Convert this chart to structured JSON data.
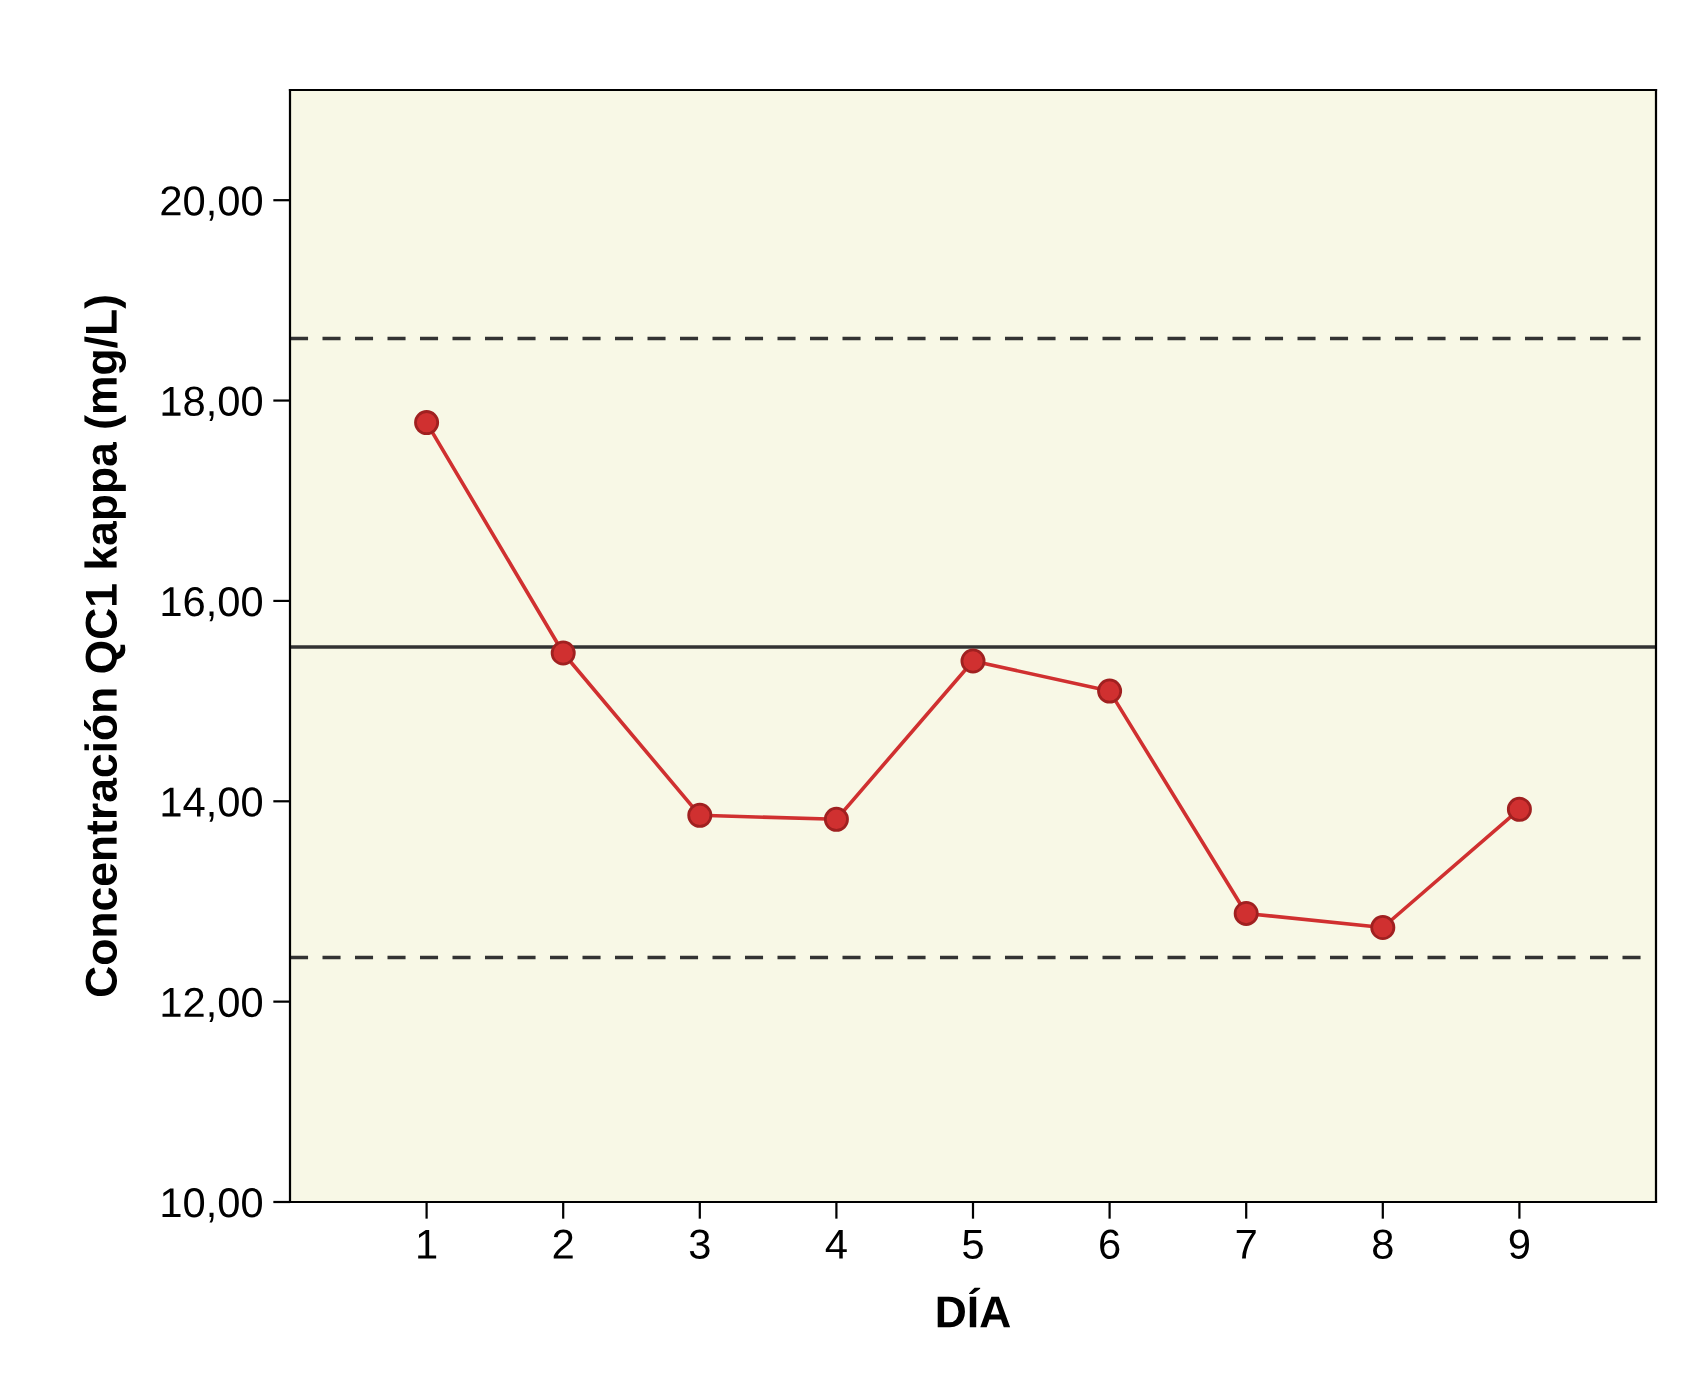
{
  "chart_data": {
    "type": "line",
    "xlabel": "DÍA",
    "ylabel": "Concentración QC1 kappa (mg/L)",
    "x": [
      1,
      2,
      3,
      4,
      5,
      6,
      7,
      8,
      9
    ],
    "series": [
      {
        "color": "#d03030",
        "values": [
          17.78,
          15.48,
          13.86,
          13.82,
          15.4,
          15.1,
          12.88,
          12.74,
          13.92
        ]
      }
    ],
    "marker": "circle",
    "line_style": "solid",
    "grid": false,
    "legend": false,
    "xlim": [
      0,
      10
    ],
    "xticks": [
      1,
      2,
      3,
      4,
      5,
      6,
      7,
      8,
      9
    ],
    "ylim": [
      10,
      21.1
    ],
    "yticks": [
      {
        "value": 10,
        "label": "10,00"
      },
      {
        "value": 12,
        "label": "12,00"
      },
      {
        "value": 14,
        "label": "14,00"
      },
      {
        "value": 16,
        "label": "16,00"
      },
      {
        "value": 18,
        "label": "18,00"
      },
      {
        "value": 20,
        "label": "20,00"
      }
    ],
    "ref_lines": [
      {
        "axis": "y",
        "value": 18.62,
        "line_style": "dashed",
        "color": "#333333"
      },
      {
        "axis": "y",
        "value": 15.54,
        "line_style": "solid",
        "color": "#333333"
      },
      {
        "axis": "y",
        "value": 12.44,
        "line_style": "dashed",
        "color": "#333333"
      }
    ]
  }
}
